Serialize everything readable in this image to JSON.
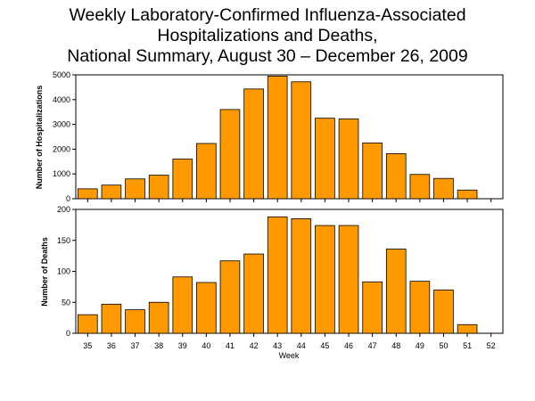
{
  "title": {
    "line1": "Weekly Laboratory-Confirmed Influenza-Associated",
    "line2": "Hospitalizations and Deaths,",
    "line3": "National Summary, August 30 – December 26, 2009"
  },
  "colors": {
    "bar": "#FF9900",
    "bar_stroke": "#000000",
    "axis": "#000000"
  },
  "chart_data": [
    {
      "type": "bar",
      "categories": [
        "35",
        "36",
        "37",
        "38",
        "39",
        "40",
        "41",
        "42",
        "43",
        "44",
        "45",
        "46",
        "47",
        "48",
        "49",
        "50",
        "51",
        "52"
      ],
      "values": [
        400,
        550,
        800,
        950,
        1600,
        2230,
        3600,
        4430,
        4950,
        4720,
        3250,
        3220,
        2250,
        1820,
        980,
        820,
        350,
        0
      ],
      "title": "",
      "xlabel": "",
      "ylabel": "Number of Hospitalizations",
      "ylim": [
        0,
        5000
      ],
      "yticks": [
        "0",
        "1000",
        "2000",
        "3000",
        "4000",
        "5000"
      ],
      "grid": false
    },
    {
      "type": "bar",
      "categories": [
        "35",
        "36",
        "37",
        "38",
        "39",
        "40",
        "41",
        "42",
        "43",
        "44",
        "45",
        "46",
        "47",
        "48",
        "49",
        "50",
        "51",
        "52"
      ],
      "values": [
        30,
        47,
        38,
        50,
        91,
        82,
        117,
        128,
        188,
        185,
        174,
        174,
        83,
        136,
        84,
        70,
        14,
        0
      ],
      "title": "",
      "xlabel": "Week",
      "ylabel": "Number of Deaths",
      "ylim": [
        0,
        200
      ],
      "yticks": [
        "0",
        "50",
        "100",
        "150",
        "200"
      ],
      "grid": false
    }
  ]
}
